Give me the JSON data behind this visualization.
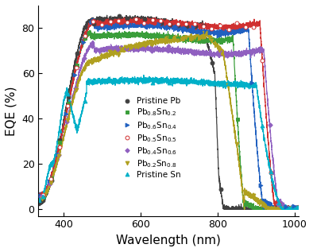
{
  "xlabel": "Wavelength (nm)",
  "ylabel": "EQE (%)",
  "xlim": [
    335,
    1010
  ],
  "ylim": [
    -3,
    90
  ],
  "xticks": [
    400,
    600,
    800,
    1000
  ],
  "yticks": [
    0,
    20,
    40,
    60,
    80
  ],
  "legend_fontsize": 7.5,
  "axis_fontsize": 11,
  "tick_fontsize": 9,
  "series": [
    {
      "label": "Pristine Pb",
      "color": "#404040",
      "marker": "o",
      "ms": 3.5,
      "mfc": "#404040",
      "mew": 0.7
    },
    {
      "label": "Pb$_{0.8}$Sn$_{0.2}$",
      "color": "#3a9e3a",
      "marker": "s",
      "ms": 3.5,
      "mfc": "#3a9e3a",
      "mew": 0.7
    },
    {
      "label": "Pb$_{0.6}$Sn$_{0.4}$",
      "color": "#2060c0",
      "marker": ">",
      "ms": 3.5,
      "mfc": "#2060c0",
      "mew": 0.7
    },
    {
      "label": "Pb$_{0.5}$Sn$_{0.5}$",
      "color": "#d03030",
      "marker": "o",
      "ms": 3.5,
      "mfc": "white",
      "mew": 0.7
    },
    {
      "label": "Pb$_{0.4}$Sn$_{0.6}$",
      "color": "#9060c0",
      "marker": "D",
      "ms": 2.8,
      "mfc": "#9060c0",
      "mew": 0.7
    },
    {
      "label": "Pb$_{0.2}$Sn$_{0.8}$",
      "color": "#b0a020",
      "marker": "v",
      "ms": 3.5,
      "mfc": "#b0a020",
      "mew": 0.7
    },
    {
      "label": "Pristine Sn",
      "color": "#00b0c8",
      "marker": "^",
      "ms": 3.5,
      "mfc": "#00b0c8",
      "mew": 0.7
    }
  ]
}
